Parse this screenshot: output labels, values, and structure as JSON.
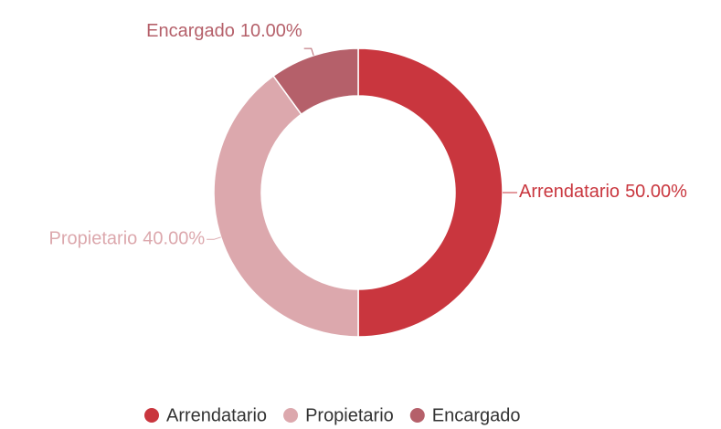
{
  "chart_data": {
    "type": "donut",
    "categories": [
      "Arrendatario",
      "Propietario",
      "Encargado"
    ],
    "values": [
      50,
      40,
      10
    ],
    "value_labels": [
      "50.00%",
      "40.00%",
      "10.00%"
    ],
    "colors": [
      "#c9363e",
      "#dca8ad",
      "#b5606a"
    ],
    "legend": "bottom"
  }
}
